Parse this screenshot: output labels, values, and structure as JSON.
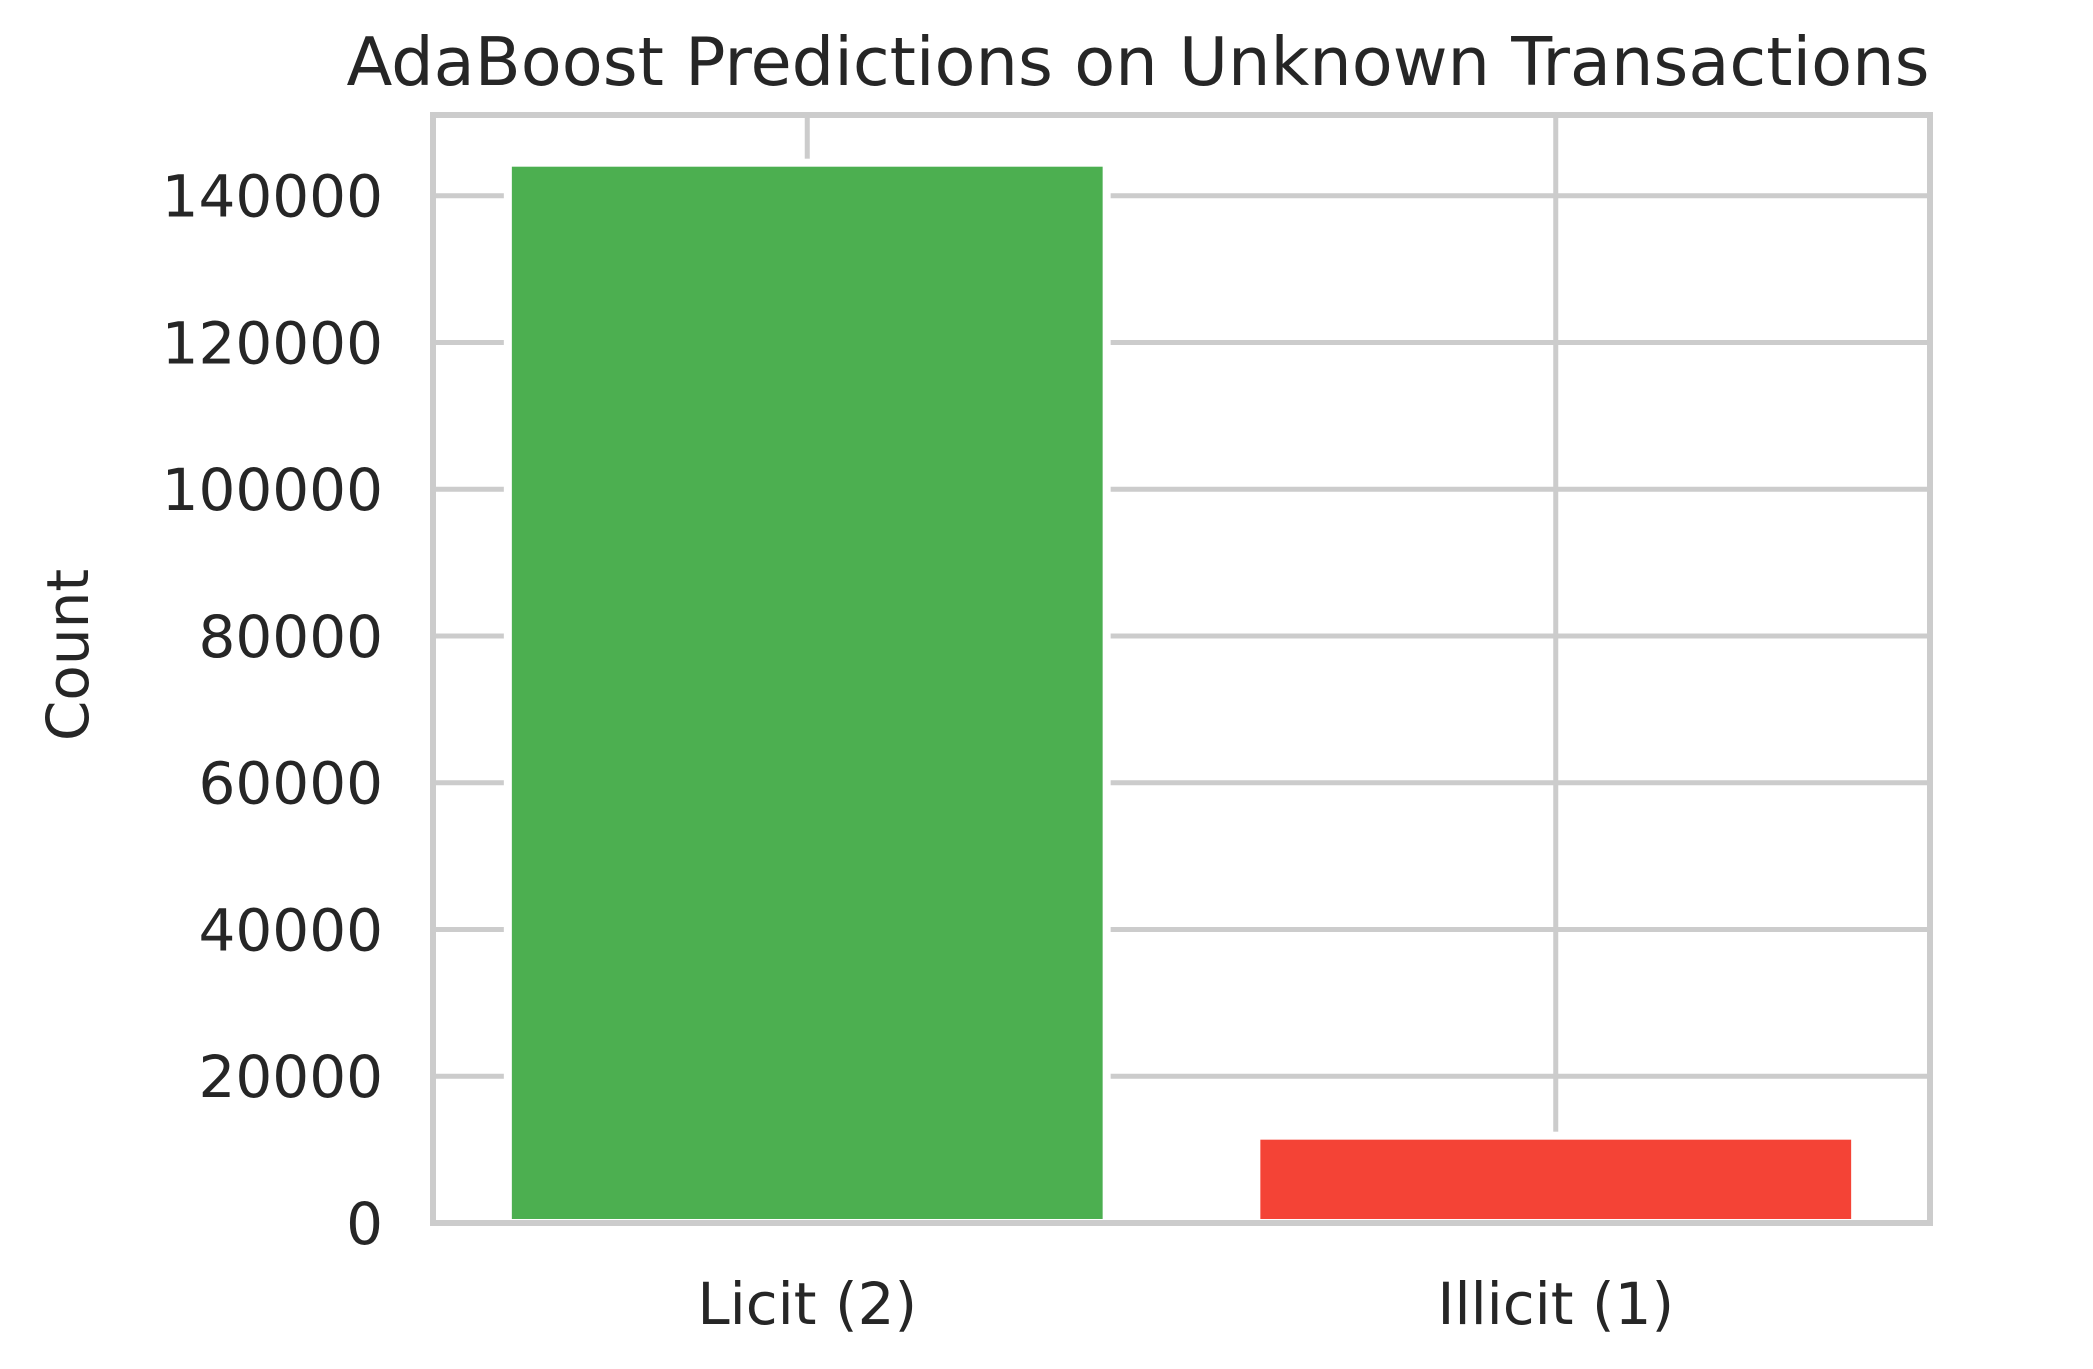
{
  "chart_data": {
    "type": "bar",
    "title": "AdaBoost Predictions on Unknown Transactions",
    "xlabel": "",
    "ylabel": "Count",
    "categories": [
      "Licit (2)",
      "Illicit (1)"
    ],
    "values": [
      144500,
      11900
    ],
    "colors": [
      "#4caf50",
      "#f44336"
    ],
    "ylim": [
      0,
      151000
    ],
    "yticks": [
      0,
      20000,
      40000,
      60000,
      80000,
      100000,
      120000,
      140000
    ],
    "ytick_labels": [
      "0",
      "20000",
      "40000",
      "60000",
      "80000",
      "100000",
      "120000",
      "140000"
    ],
    "grid": true,
    "grid_color": "#cccccc",
    "text_color": "#262626"
  }
}
